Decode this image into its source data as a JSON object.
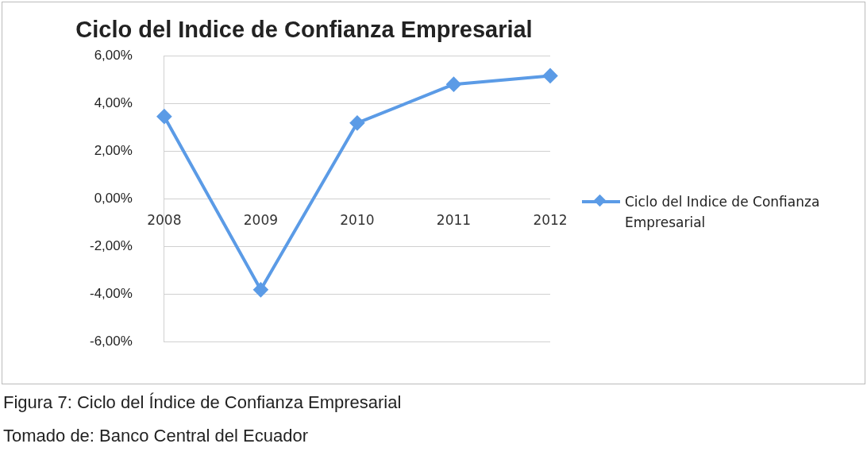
{
  "chart_data": {
    "type": "line",
    "title": "Ciclo del Indice de Confianza Empresarial",
    "categories": [
      "2008",
      "2009",
      "2010",
      "2011",
      "2012"
    ],
    "series": [
      {
        "name": "Ciclo del Indice de Confianza Empresarial",
        "color": "#5b9be6",
        "values": [
          3.47,
          -3.8,
          3.2,
          4.82,
          5.18
        ]
      }
    ],
    "ylim": [
      -6,
      6
    ],
    "yticks": [
      {
        "value": -6,
        "label": "-6,00%"
      },
      {
        "value": -4,
        "label": "-4,00%"
      },
      {
        "value": -2,
        "label": "-2,00%"
      },
      {
        "value": 0,
        "label": "0,00%"
      },
      {
        "value": 2,
        "label": "2,00%"
      },
      {
        "value": 4,
        "label": "4,00%"
      },
      {
        "value": 6,
        "label": "6,00%"
      }
    ],
    "grid": "y",
    "legend": "right",
    "marker": "diamond",
    "line_style": "solid",
    "annotations": [
      "Figura 7: Ciclo del Índice de Confianza Empresarial",
      "Tomado de: Banco Central del Ecuador"
    ]
  }
}
